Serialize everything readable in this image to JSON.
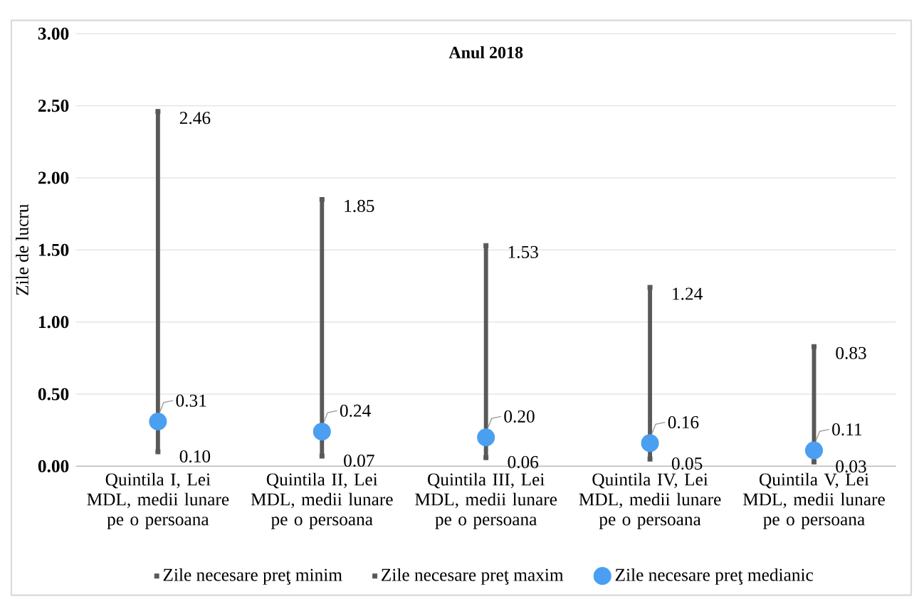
{
  "chart_data": {
    "type": "scatter",
    "title": "Anul 2018",
    "ylabel": "Zile de lucru",
    "categories": [
      "Quintila I, Lei MDL, medii lunare pe o persoana",
      "Quintila II, Lei MDL, medii lunare pe o persoana",
      "Quintila III, Lei MDL, medii lunare pe o persoana",
      "Quintila IV, Lei MDL, medii lunare pe o persoana",
      "Quintila V, Lei MDL, medii lunare pe o persoana"
    ],
    "series": [
      {
        "name": "Zile  necesare preţ minim",
        "marker": "square",
        "color": "#595959",
        "values": [
          0.1,
          0.07,
          0.06,
          0.05,
          0.03
        ],
        "value_labels": [
          "0.10",
          "0.07",
          "0.06",
          "0.05",
          "0.03"
        ]
      },
      {
        "name": "Zile  necesare preţ maxim",
        "marker": "square",
        "color": "#595959",
        "values": [
          2.46,
          1.85,
          1.53,
          1.24,
          0.83
        ],
        "value_labels": [
          "2.46",
          "1.85",
          "1.53",
          "1.24",
          "0.83"
        ]
      },
      {
        "name": "Zile  necesare preţ medianic",
        "marker": "circle",
        "color": "#4a9ff0",
        "values": [
          0.31,
          0.24,
          0.2,
          0.16,
          0.11
        ],
        "value_labels": [
          "0.31",
          "0.24",
          "0.20",
          "0.16",
          "0.11"
        ]
      }
    ],
    "ylim": [
      0,
      3
    ],
    "yticks": [
      {
        "value": 0,
        "label": "0.00"
      },
      {
        "value": 0.5,
        "label": "0.50"
      },
      {
        "value": 1,
        "label": "1.00"
      },
      {
        "value": 1.5,
        "label": "1.50"
      },
      {
        "value": 2,
        "label": "2.00"
      },
      {
        "value": 2.5,
        "label": "2.50"
      },
      {
        "value": 3,
        "label": "3.00"
      }
    ],
    "grid": "y",
    "legend": "bottom"
  }
}
